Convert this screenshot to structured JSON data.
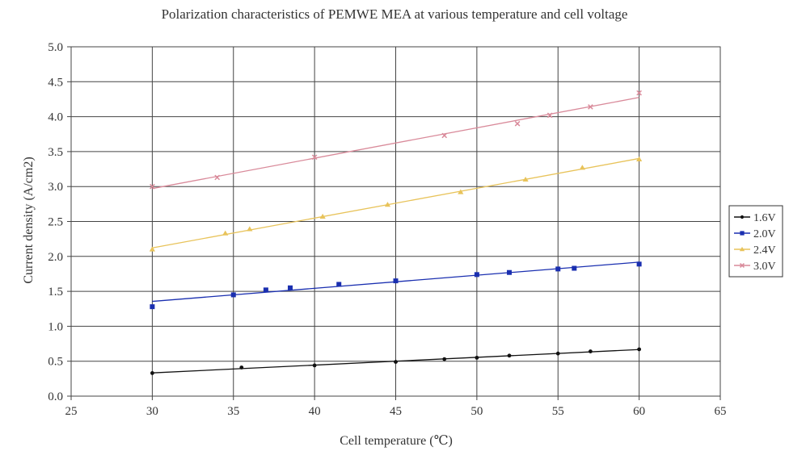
{
  "chart_data": {
    "type": "line",
    "title": "Polarization characteristics of PEMWE MEA at various temperature and cell voltage",
    "xlabel": "Cell temperature (℃)",
    "ylabel": "Current density (A/cm2)",
    "xlim": [
      25,
      65
    ],
    "ylim": [
      0,
      5
    ],
    "xticks": [
      "25",
      "30",
      "35",
      "40",
      "45",
      "50",
      "55",
      "60",
      "65"
    ],
    "yticks": [
      "0.0",
      "0.5",
      "1.0",
      "1.5",
      "2.0",
      "2.5",
      "3.0",
      "3.5",
      "4.0",
      "4.5",
      "5.0"
    ],
    "grid": true,
    "legend_position": "right",
    "series": [
      {
        "name": "1.6V",
        "color": "#111111",
        "marker": "circle",
        "x": [
          30,
          35.5,
          40,
          45,
          48,
          50,
          52,
          55,
          57,
          60
        ],
        "y": [
          0.33,
          0.41,
          0.44,
          0.49,
          0.53,
          0.55,
          0.58,
          0.61,
          0.64,
          0.67
        ]
      },
      {
        "name": "2.0V",
        "color": "#1a2fb0",
        "marker": "square",
        "x": [
          30,
          35,
          37,
          38.5,
          41.5,
          45,
          50,
          52,
          55,
          56,
          60
        ],
        "y": [
          1.28,
          1.45,
          1.52,
          1.55,
          1.6,
          1.65,
          1.74,
          1.77,
          1.82,
          1.83,
          1.89
        ]
      },
      {
        "name": "2.4V",
        "color": "#e8c35a",
        "marker": "triangle",
        "x": [
          30,
          34.5,
          36,
          40.5,
          44.5,
          49,
          53,
          56.5,
          60
        ],
        "y": [
          2.1,
          2.33,
          2.39,
          2.57,
          2.74,
          2.92,
          3.1,
          3.27,
          3.39
        ]
      },
      {
        "name": "3.0V",
        "color": "#d98a9a",
        "marker": "x",
        "x": [
          30,
          34,
          40,
          48,
          52.5,
          54.5,
          57,
          60
        ],
        "y": [
          3.0,
          3.13,
          3.42,
          3.73,
          3.9,
          4.02,
          4.14,
          4.34
        ]
      }
    ]
  }
}
